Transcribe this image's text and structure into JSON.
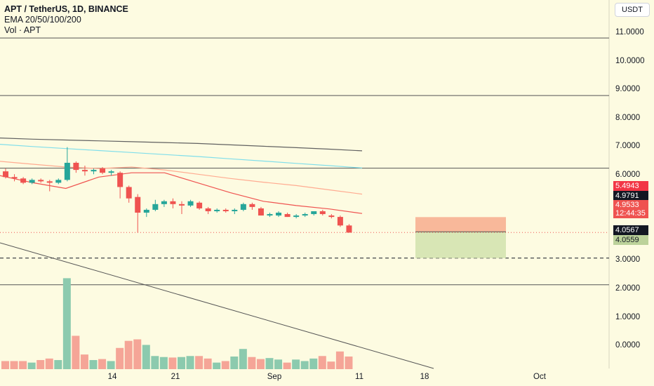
{
  "legend": {
    "title": "APT / TetherUS, 1D, BINANCE",
    "ema": "EMA 20/50/100/200",
    "vol": "Vol · APT"
  },
  "currency_button": "USDT",
  "price_axis": [
    "11.0000",
    "10.0000",
    "9.0000",
    "8.0000",
    "7.0000",
    "6.0000",
    "3.0000",
    "2.0000",
    "1.0000",
    "0.0000"
  ],
  "time_axis": [
    "14",
    "21",
    "Sep",
    "11",
    "18",
    "Oct"
  ],
  "price_tags": {
    "target": "5.4943",
    "entry": "4.9791",
    "last": "4.9533",
    "countdown": "12:44:35",
    "dashed_level": "4.0567",
    "stop": "4.0559"
  },
  "colors": {
    "background": "#fdfbe1",
    "up": "#26a69a",
    "down": "#ef5350",
    "ema20": "#ef5350",
    "ema50": "#ffab91",
    "ema100": "#80deea",
    "ema200": "#616161",
    "target_zone": "#f8b89a",
    "stop_zone": "#d8e6b5"
  },
  "chart_data": {
    "type": "candlestick",
    "xlabel": "",
    "ylabel": "",
    "ylim": [
      3.0,
      11.0
    ],
    "candles": [
      {
        "o": 7.1,
        "h": 7.2,
        "l": 6.85,
        "c": 6.9
      },
      {
        "o": 6.9,
        "h": 7.0,
        "l": 6.75,
        "c": 6.85
      },
      {
        "o": 6.85,
        "h": 6.9,
        "l": 6.65,
        "c": 6.7
      },
      {
        "o": 6.7,
        "h": 6.85,
        "l": 6.65,
        "c": 6.8
      },
      {
        "o": 6.8,
        "h": 6.85,
        "l": 6.7,
        "c": 6.75
      },
      {
        "o": 6.75,
        "h": 6.8,
        "l": 6.4,
        "c": 6.7
      },
      {
        "o": 6.7,
        "h": 6.85,
        "l": 6.65,
        "c": 6.8
      },
      {
        "o": 6.8,
        "h": 7.95,
        "l": 6.75,
        "c": 7.4
      },
      {
        "o": 7.4,
        "h": 7.45,
        "l": 7.05,
        "c": 7.15
      },
      {
        "o": 7.15,
        "h": 7.3,
        "l": 6.95,
        "c": 7.1
      },
      {
        "o": 7.1,
        "h": 7.2,
        "l": 7.0,
        "c": 7.15
      },
      {
        "o": 7.2,
        "h": 7.25,
        "l": 7.0,
        "c": 7.05
      },
      {
        "o": 7.05,
        "h": 7.15,
        "l": 6.95,
        "c": 7.1
      },
      {
        "o": 7.05,
        "h": 7.1,
        "l": 6.15,
        "c": 6.55
      },
      {
        "o": 6.55,
        "h": 6.6,
        "l": 6.0,
        "c": 6.15
      },
      {
        "o": 6.2,
        "h": 6.3,
        "l": 4.95,
        "c": 5.65
      },
      {
        "o": 5.65,
        "h": 5.8,
        "l": 5.5,
        "c": 5.75
      },
      {
        "o": 5.75,
        "h": 6.1,
        "l": 5.7,
        "c": 5.95
      },
      {
        "o": 5.95,
        "h": 6.1,
        "l": 5.85,
        "c": 6.05
      },
      {
        "o": 6.05,
        "h": 6.15,
        "l": 5.8,
        "c": 5.95
      },
      {
        "o": 5.95,
        "h": 6.05,
        "l": 5.6,
        "c": 5.9
      },
      {
        "o": 5.9,
        "h": 6.1,
        "l": 5.85,
        "c": 6.05
      },
      {
        "o": 6.0,
        "h": 6.05,
        "l": 5.75,
        "c": 5.8
      },
      {
        "o": 5.8,
        "h": 5.85,
        "l": 5.6,
        "c": 5.7
      },
      {
        "o": 5.7,
        "h": 5.8,
        "l": 5.65,
        "c": 5.75
      },
      {
        "o": 5.75,
        "h": 5.8,
        "l": 5.65,
        "c": 5.7
      },
      {
        "o": 5.7,
        "h": 5.8,
        "l": 5.6,
        "c": 5.75
      },
      {
        "o": 5.75,
        "h": 6.0,
        "l": 5.7,
        "c": 5.95
      },
      {
        "o": 5.95,
        "h": 6.0,
        "l": 5.75,
        "c": 5.85
      },
      {
        "o": 5.8,
        "h": 5.85,
        "l": 5.55,
        "c": 5.55
      },
      {
        "o": 5.55,
        "h": 5.65,
        "l": 5.5,
        "c": 5.6
      },
      {
        "o": 5.55,
        "h": 5.7,
        "l": 5.5,
        "c": 5.65
      },
      {
        "o": 5.6,
        "h": 5.65,
        "l": 5.5,
        "c": 5.5
      },
      {
        "o": 5.5,
        "h": 5.6,
        "l": 5.45,
        "c": 5.55
      },
      {
        "o": 5.55,
        "h": 5.65,
        "l": 5.5,
        "c": 5.6
      },
      {
        "o": 5.6,
        "h": 5.7,
        "l": 5.55,
        "c": 5.7
      },
      {
        "o": 5.7,
        "h": 5.75,
        "l": 5.55,
        "c": 5.6
      },
      {
        "o": 5.55,
        "h": 5.6,
        "l": 5.45,
        "c": 5.5
      },
      {
        "o": 5.5,
        "h": 5.55,
        "l": 5.15,
        "c": 5.2
      },
      {
        "o": 5.2,
        "h": 5.25,
        "l": 4.95,
        "c": 4.95
      }
    ],
    "volume": [
      0.16,
      0.16,
      0.16,
      0.13,
      0.18,
      0.21,
      0.18,
      1.8,
      0.66,
      0.29,
      0.18,
      0.2,
      0.16,
      0.42,
      0.56,
      0.59,
      0.48,
      0.26,
      0.24,
      0.23,
      0.24,
      0.26,
      0.26,
      0.21,
      0.13,
      0.16,
      0.25,
      0.4,
      0.24,
      0.2,
      0.22,
      0.19,
      0.13,
      0.19,
      0.16,
      0.21,
      0.26,
      0.15,
      0.35,
      0.25
    ],
    "volume_up": [
      false,
      false,
      false,
      true,
      false,
      false,
      true,
      true,
      false,
      false,
      true,
      false,
      true,
      false,
      false,
      false,
      true,
      true,
      true,
      false,
      true,
      true,
      false,
      false,
      true,
      false,
      true,
      true,
      false,
      false,
      true,
      true,
      false,
      true,
      true,
      true,
      false,
      false,
      false,
      false
    ],
    "ema_series": [
      {
        "values": [
          6.95,
          6.7,
          6.5,
          6.9,
          7.05,
          7.05,
          6.7,
          6.35,
          6.05,
          5.9,
          5.78,
          5.62
        ]
      },
      {
        "values": [
          7.45,
          7.35,
          7.25,
          7.2,
          7.25,
          7.15,
          7.0,
          6.85,
          6.72,
          6.6,
          6.45,
          6.3
        ]
      },
      {
        "values": [
          8.05,
          7.97,
          7.9,
          7.83,
          7.76,
          7.69,
          7.62,
          7.54,
          7.46,
          7.38,
          7.3,
          7.22
        ]
      },
      {
        "values": [
          8.27,
          8.23,
          8.2,
          8.17,
          8.14,
          8.11,
          8.08,
          8.03,
          7.98,
          7.93,
          7.88,
          7.82
        ]
      }
    ],
    "horizontal_levels": [
      11.78,
      9.76,
      7.21,
      4.0567,
      3.12
    ],
    "position": {
      "target": 5.4943,
      "entry": 4.9791,
      "stop": 4.0559
    },
    "last_price": 4.9533
  }
}
